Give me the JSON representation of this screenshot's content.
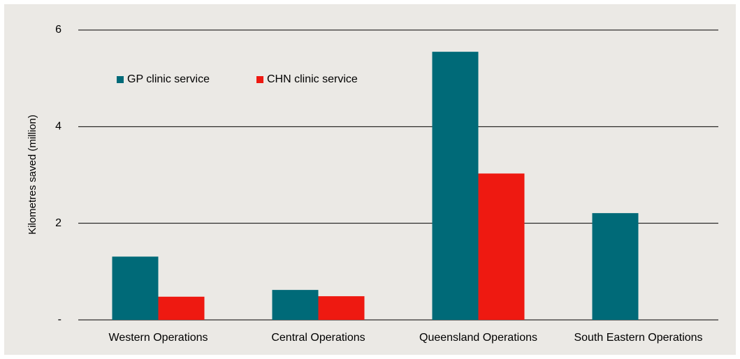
{
  "chart_data": {
    "type": "bar",
    "ylabel": "Kilometres saved (million)",
    "categories": [
      "Western Operations",
      "Central Operations",
      "Queensland Operations",
      "South Eastern Operations"
    ],
    "series": [
      {
        "name": "GP clinic service",
        "color": "#006a78",
        "values": [
          1.31,
          0.62,
          5.55,
          2.21
        ]
      },
      {
        "name": "CHN clinic service",
        "color": "#ee1911",
        "values": [
          0.48,
          0.49,
          3.03,
          0
        ]
      }
    ],
    "ylim": [
      0,
      6
    ],
    "yticks": [
      {
        "value": 0,
        "label": "-"
      },
      2,
      4,
      6
    ],
    "grid": true,
    "legend": "top-left"
  }
}
